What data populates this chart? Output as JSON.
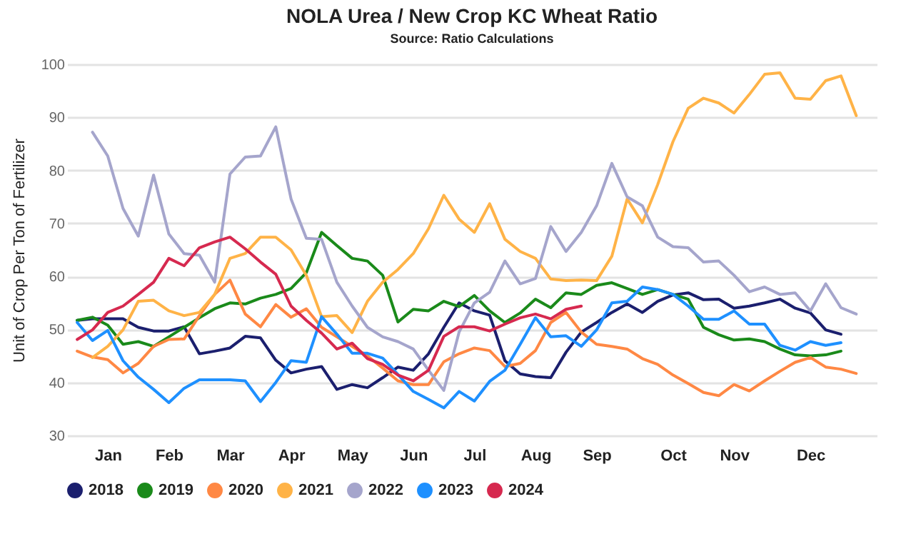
{
  "chart_data": {
    "type": "line",
    "title": "NOLA Urea / New Crop KC Wheat Ratio",
    "subtitle": "Source: Ratio Calculations",
    "ylabel": "Unit of Crop Per Ton of Fertilizer",
    "categories": [
      null,
      null,
      "Jan",
      null,
      null,
      null,
      "Feb",
      null,
      null,
      null,
      "Mar",
      null,
      null,
      null,
      "Apr",
      null,
      null,
      null,
      "May",
      null,
      null,
      null,
      "Jun",
      null,
      null,
      null,
      "Jul",
      null,
      null,
      null,
      "Aug",
      null,
      null,
      null,
      "Sep",
      null,
      null,
      null,
      null,
      "Oct",
      null,
      null,
      null,
      "Nov",
      null,
      null,
      null,
      null,
      "Dec",
      null,
      null,
      null
    ],
    "ylim": [
      30,
      100
    ],
    "yticks": [
      30,
      40,
      50,
      60,
      70,
      80,
      90,
      100
    ],
    "grid": "y",
    "legend": "bottom",
    "marker": "none",
    "series": [
      {
        "name": "2018",
        "color": "#1b1f6e",
        "values": [
          51.7,
          52.0,
          52.0,
          52.0,
          50.4,
          49.7,
          49.7,
          50.5,
          45.4,
          45.9,
          46.5,
          48.7,
          48.4,
          44.2,
          41.8,
          42.5,
          43.0,
          38.7,
          39.6,
          39.0,
          40.9,
          42.9,
          42.3,
          45.4,
          50.4,
          55.0,
          53.5,
          52.7,
          44.1,
          41.6,
          41.1,
          40.9,
          45.7,
          49.5,
          51.3,
          53.2,
          54.8,
          53.2,
          55.3,
          56.5,
          56.9,
          55.6,
          55.7,
          54.0,
          54.4,
          55.0,
          55.7,
          54.0,
          53.1,
          49.9,
          49.1,
          null
        ]
      },
      {
        "name": "2019",
        "color": "#1a8a1a",
        "values": [
          51.7,
          52.3,
          50.8,
          47.2,
          47.7,
          46.8,
          48.6,
          50.4,
          52.2,
          53.9,
          55.0,
          54.8,
          55.9,
          56.6,
          57.7,
          60.7,
          68.3,
          65.8,
          63.4,
          62.9,
          60.2,
          51.4,
          53.8,
          53.5,
          55.3,
          54.3,
          56.4,
          53.5,
          51.3,
          53.1,
          55.7,
          54.1,
          56.9,
          56.6,
          58.3,
          58.8,
          57.7,
          56.6,
          57.5,
          56.6,
          55.7,
          50.4,
          49.0,
          48.0,
          48.2,
          47.7,
          46.3,
          45.2,
          45.0,
          45.2,
          45.9,
          null
        ]
      },
      {
        "name": "2020",
        "color": "#ff8844",
        "values": [
          45.9,
          44.8,
          44.3,
          41.8,
          43.6,
          46.8,
          48.1,
          48.2,
          52.6,
          56.6,
          59.3,
          52.9,
          50.5,
          54.7,
          52.3,
          53.9,
          50.4,
          48.6,
          46.8,
          45.0,
          42.7,
          40.3,
          39.6,
          39.6,
          43.9,
          45.4,
          46.5,
          46.0,
          43.0,
          43.6,
          46.0,
          51.3,
          53.2,
          49.5,
          47.2,
          46.8,
          46.3,
          44.5,
          43.4,
          41.4,
          39.8,
          38.1,
          37.5,
          39.6,
          38.4,
          40.3,
          42.1,
          43.8,
          44.7,
          42.9,
          42.5,
          41.7
        ]
      },
      {
        "name": "2021",
        "color": "#ffb347",
        "values": [
          null,
          44.7,
          46.8,
          49.9,
          55.3,
          55.5,
          53.5,
          52.6,
          53.2,
          56.6,
          63.4,
          64.3,
          67.4,
          67.4,
          65.0,
          60.2,
          52.4,
          52.6,
          49.4,
          55.3,
          58.9,
          61.3,
          64.3,
          69.0,
          75.3,
          70.8,
          68.3,
          73.7,
          67.0,
          64.7,
          63.4,
          59.5,
          59.2,
          59.3,
          59.2,
          63.8,
          74.6,
          70.1,
          77.3,
          85.4,
          91.7,
          93.6,
          92.7,
          90.8,
          94.3,
          98.1,
          98.4,
          93.6,
          93.4,
          96.9,
          97.8,
          90.3
        ]
      },
      {
        "name": "2022",
        "color": "#a5a5cc",
        "values": [
          null,
          87.2,
          82.7,
          72.8,
          67.6,
          79.1,
          68.0,
          64.3,
          64.0,
          58.9,
          79.3,
          82.5,
          82.7,
          88.2,
          74.6,
          67.2,
          67.0,
          58.9,
          54.4,
          50.4,
          48.6,
          47.7,
          46.3,
          42.3,
          38.5,
          49.5,
          55.0,
          57.0,
          62.9,
          58.6,
          59.6,
          69.4,
          64.7,
          68.3,
          73.3,
          81.3,
          75.0,
          73.3,
          67.4,
          65.6,
          65.4,
          62.7,
          62.9,
          60.2,
          57.1,
          58.0,
          56.6,
          56.9,
          53.5,
          58.6,
          54.1,
          52.9
        ]
      },
      {
        "name": "2023",
        "color": "#1e90ff",
        "values": [
          51.3,
          47.9,
          49.8,
          44.1,
          41.0,
          38.7,
          36.2,
          38.9,
          40.5,
          40.5,
          40.5,
          40.3,
          36.4,
          40.0,
          44.1,
          43.8,
          52.4,
          49.1,
          45.5,
          45.5,
          44.6,
          41.5,
          38.3,
          36.8,
          35.2,
          38.3,
          36.5,
          40.2,
          42.3,
          47.2,
          52.2,
          48.6,
          48.8,
          46.8,
          49.9,
          55.0,
          55.3,
          58.0,
          57.5,
          56.6,
          54.4,
          51.9,
          51.9,
          53.5,
          51.0,
          51.0,
          47.0,
          46.1,
          47.7,
          47.0,
          47.5,
          null
        ]
      },
      {
        "name": "2024",
        "color": "#d6294f",
        "values": [
          48.1,
          49.9,
          53.2,
          54.4,
          56.6,
          58.9,
          63.4,
          62.0,
          65.4,
          66.5,
          67.4,
          65.2,
          62.7,
          60.4,
          54.4,
          51.7,
          49.3,
          46.3,
          47.4,
          44.5,
          43.4,
          41.4,
          40.3,
          42.3,
          48.7,
          50.5,
          50.5,
          49.7,
          51.0,
          52.2,
          52.9,
          52.0,
          53.8,
          54.4,
          null,
          null,
          null,
          null,
          null,
          null,
          null,
          null,
          null,
          null,
          null,
          null,
          null,
          null,
          null,
          null,
          null,
          null
        ]
      }
    ]
  }
}
